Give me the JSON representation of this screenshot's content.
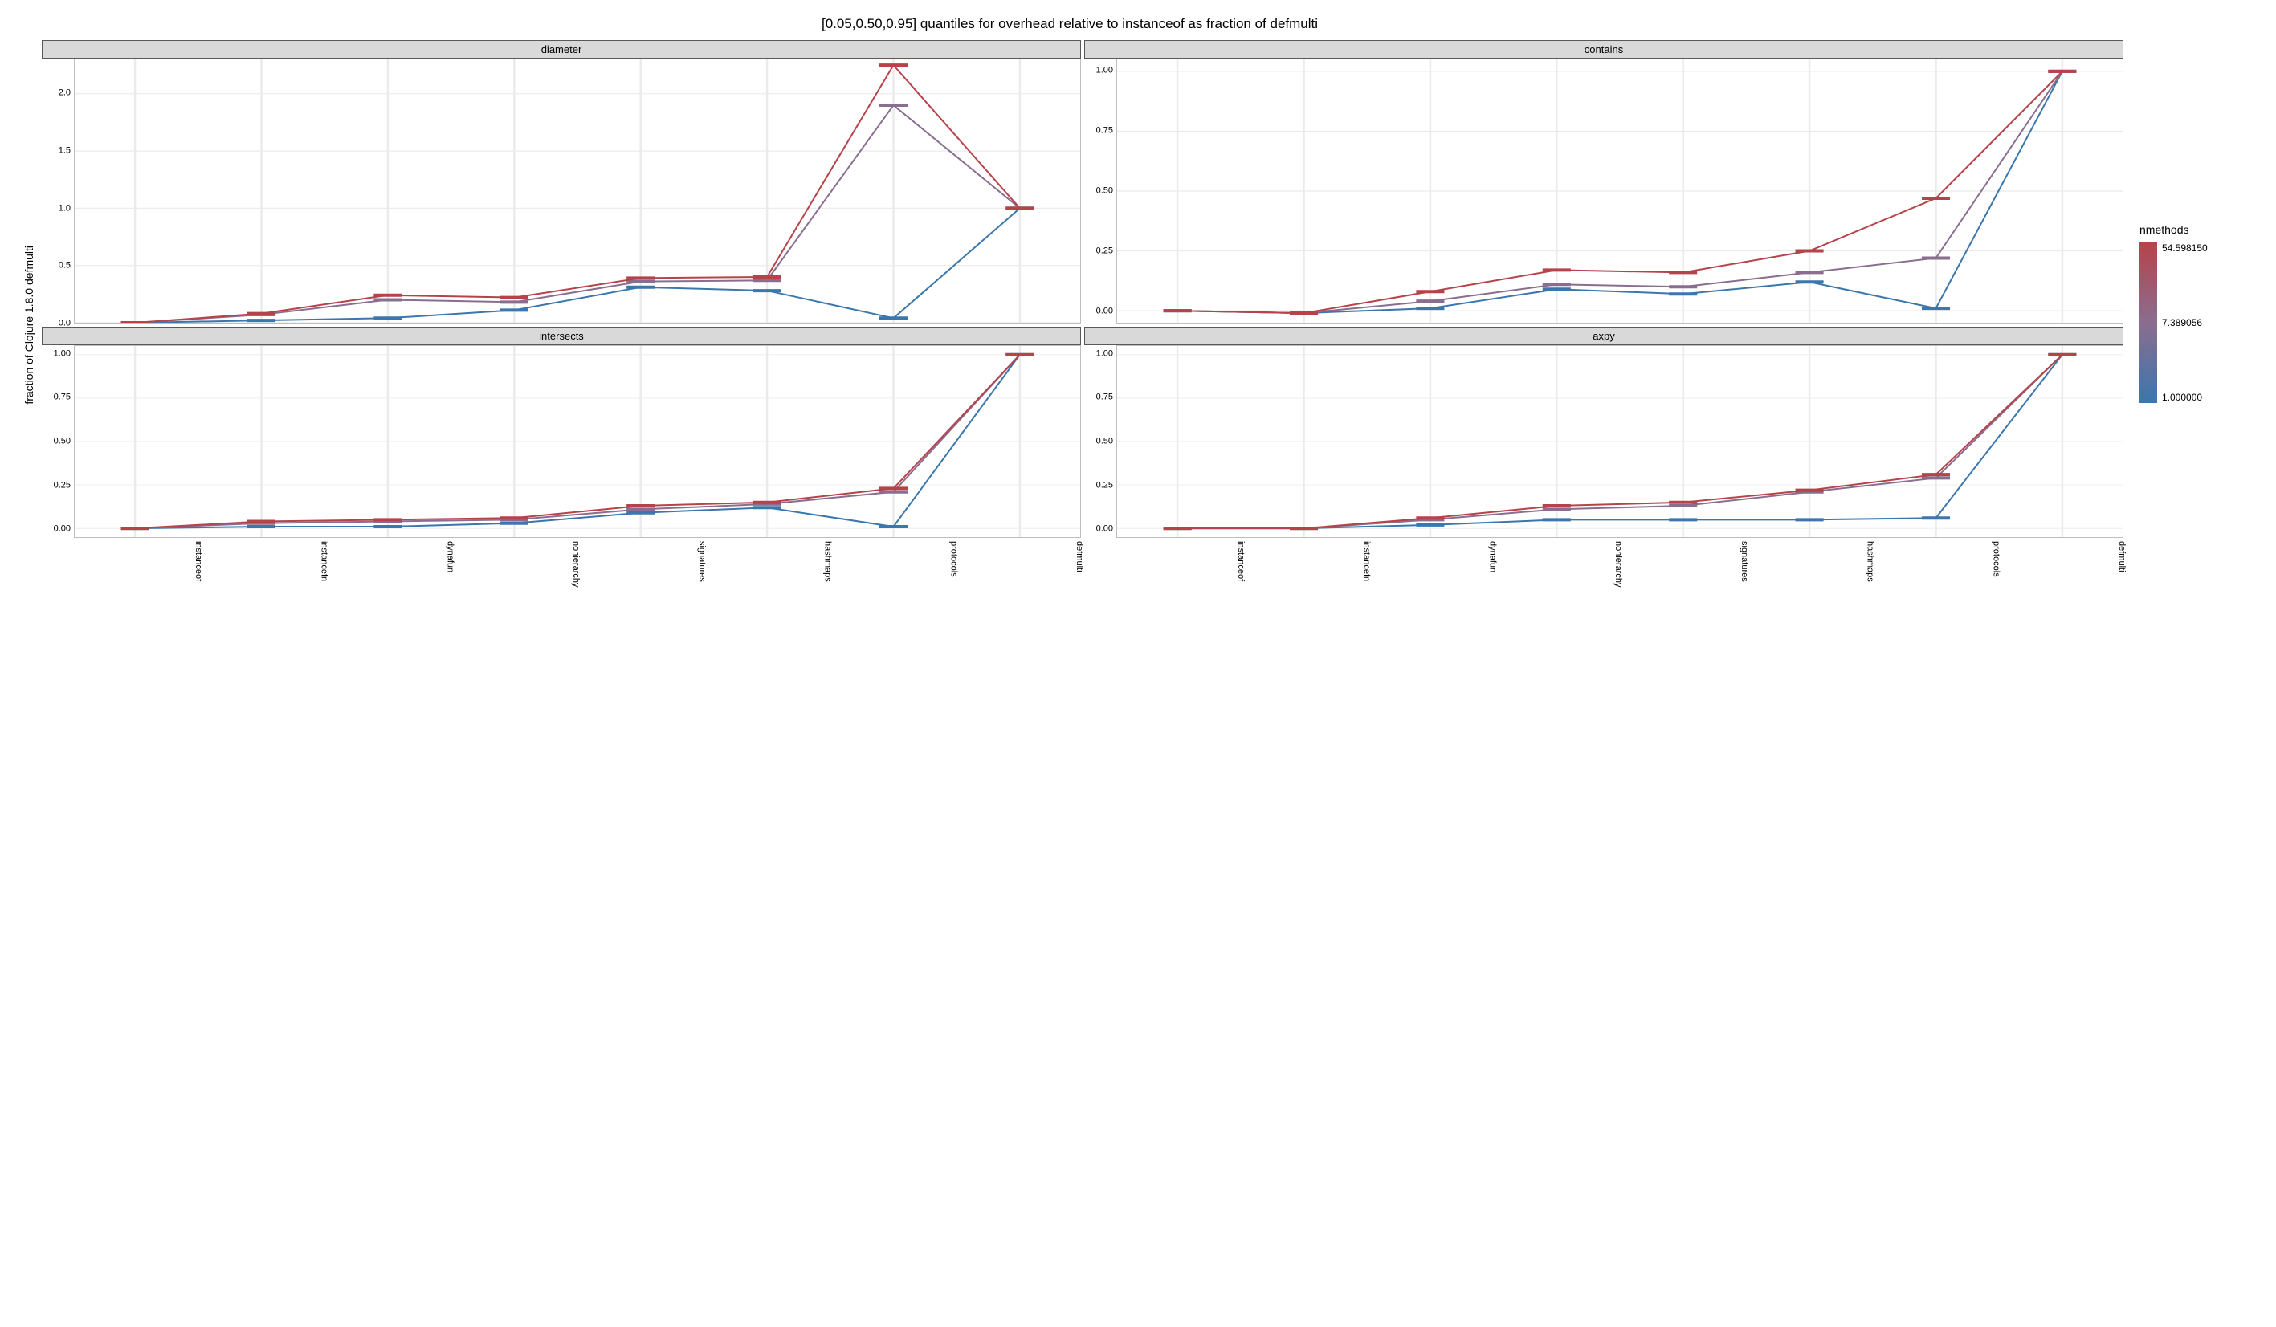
{
  "title": "[0.05,0.50,0.95] quantiles for overhead relative to instanceof as fraction of defmulti",
  "y_axis_label": "fraction of Clojure 1.8.0 defmulti",
  "categories": [
    "instanceof",
    "instancefn",
    "dynafun",
    "nohierarchy",
    "signatures",
    "hashmaps",
    "protocols",
    "defmulti"
  ],
  "colors": {
    "low": "#3b76ad",
    "mid": "#8a6d8f",
    "high": "#b6434a",
    "grid": "#ebebeb",
    "panel_bg": "#ffffff",
    "panel_border": "#bfbfbf",
    "strip_bg": "#d9d9d9",
    "strip_border": "#595959"
  },
  "legend": {
    "title": "nmethods",
    "stops": [
      "54.598150",
      "7.389056",
      "1.000000"
    ]
  },
  "panels": [
    {
      "name": "diameter",
      "ylim": [
        0,
        2.3
      ],
      "yticks": [
        0.0,
        0.5,
        1.0,
        1.5,
        2.0
      ],
      "has_xticks": false,
      "series": {
        "low": [
          0.0,
          0.02,
          0.04,
          0.11,
          0.31,
          0.28,
          0.04,
          1.0
        ],
        "mid": [
          0.0,
          0.07,
          0.2,
          0.18,
          0.36,
          0.37,
          1.9,
          1.0
        ],
        "high": [
          0.0,
          0.08,
          0.24,
          0.22,
          0.39,
          0.4,
          2.25,
          1.0
        ]
      }
    },
    {
      "name": "contains",
      "ylim": [
        -0.05,
        1.05
      ],
      "yticks": [
        0.0,
        0.25,
        0.5,
        0.75,
        1.0
      ],
      "has_xticks": false,
      "series": {
        "low": [
          0.0,
          -0.01,
          0.01,
          0.09,
          0.07,
          0.12,
          0.01,
          1.0
        ],
        "mid": [
          0.0,
          -0.01,
          0.04,
          0.11,
          0.1,
          0.16,
          0.22,
          1.0
        ],
        "high": [
          0.0,
          -0.01,
          0.08,
          0.17,
          0.16,
          0.25,
          0.47,
          1.0
        ]
      }
    },
    {
      "name": "intersects",
      "ylim": [
        -0.05,
        1.05
      ],
      "yticks": [
        0.0,
        0.25,
        0.5,
        0.75,
        1.0
      ],
      "has_xticks": true,
      "series": {
        "low": [
          0.0,
          0.01,
          0.01,
          0.03,
          0.09,
          0.12,
          0.01,
          1.0
        ],
        "mid": [
          0.0,
          0.03,
          0.04,
          0.05,
          0.11,
          0.14,
          0.21,
          1.0
        ],
        "high": [
          0.0,
          0.04,
          0.05,
          0.06,
          0.13,
          0.15,
          0.23,
          1.0
        ]
      }
    },
    {
      "name": "axpy",
      "ylim": [
        -0.05,
        1.05
      ],
      "yticks": [
        0.0,
        0.25,
        0.5,
        0.75,
        1.0
      ],
      "has_xticks": true,
      "series": {
        "low": [
          0.0,
          0.0,
          0.02,
          0.05,
          0.05,
          0.05,
          0.06,
          1.0
        ],
        "mid": [
          0.0,
          0.0,
          0.05,
          0.11,
          0.13,
          0.21,
          0.29,
          1.0
        ],
        "high": [
          0.0,
          0.0,
          0.06,
          0.13,
          0.15,
          0.22,
          0.31,
          1.0
        ]
      }
    }
  ]
}
